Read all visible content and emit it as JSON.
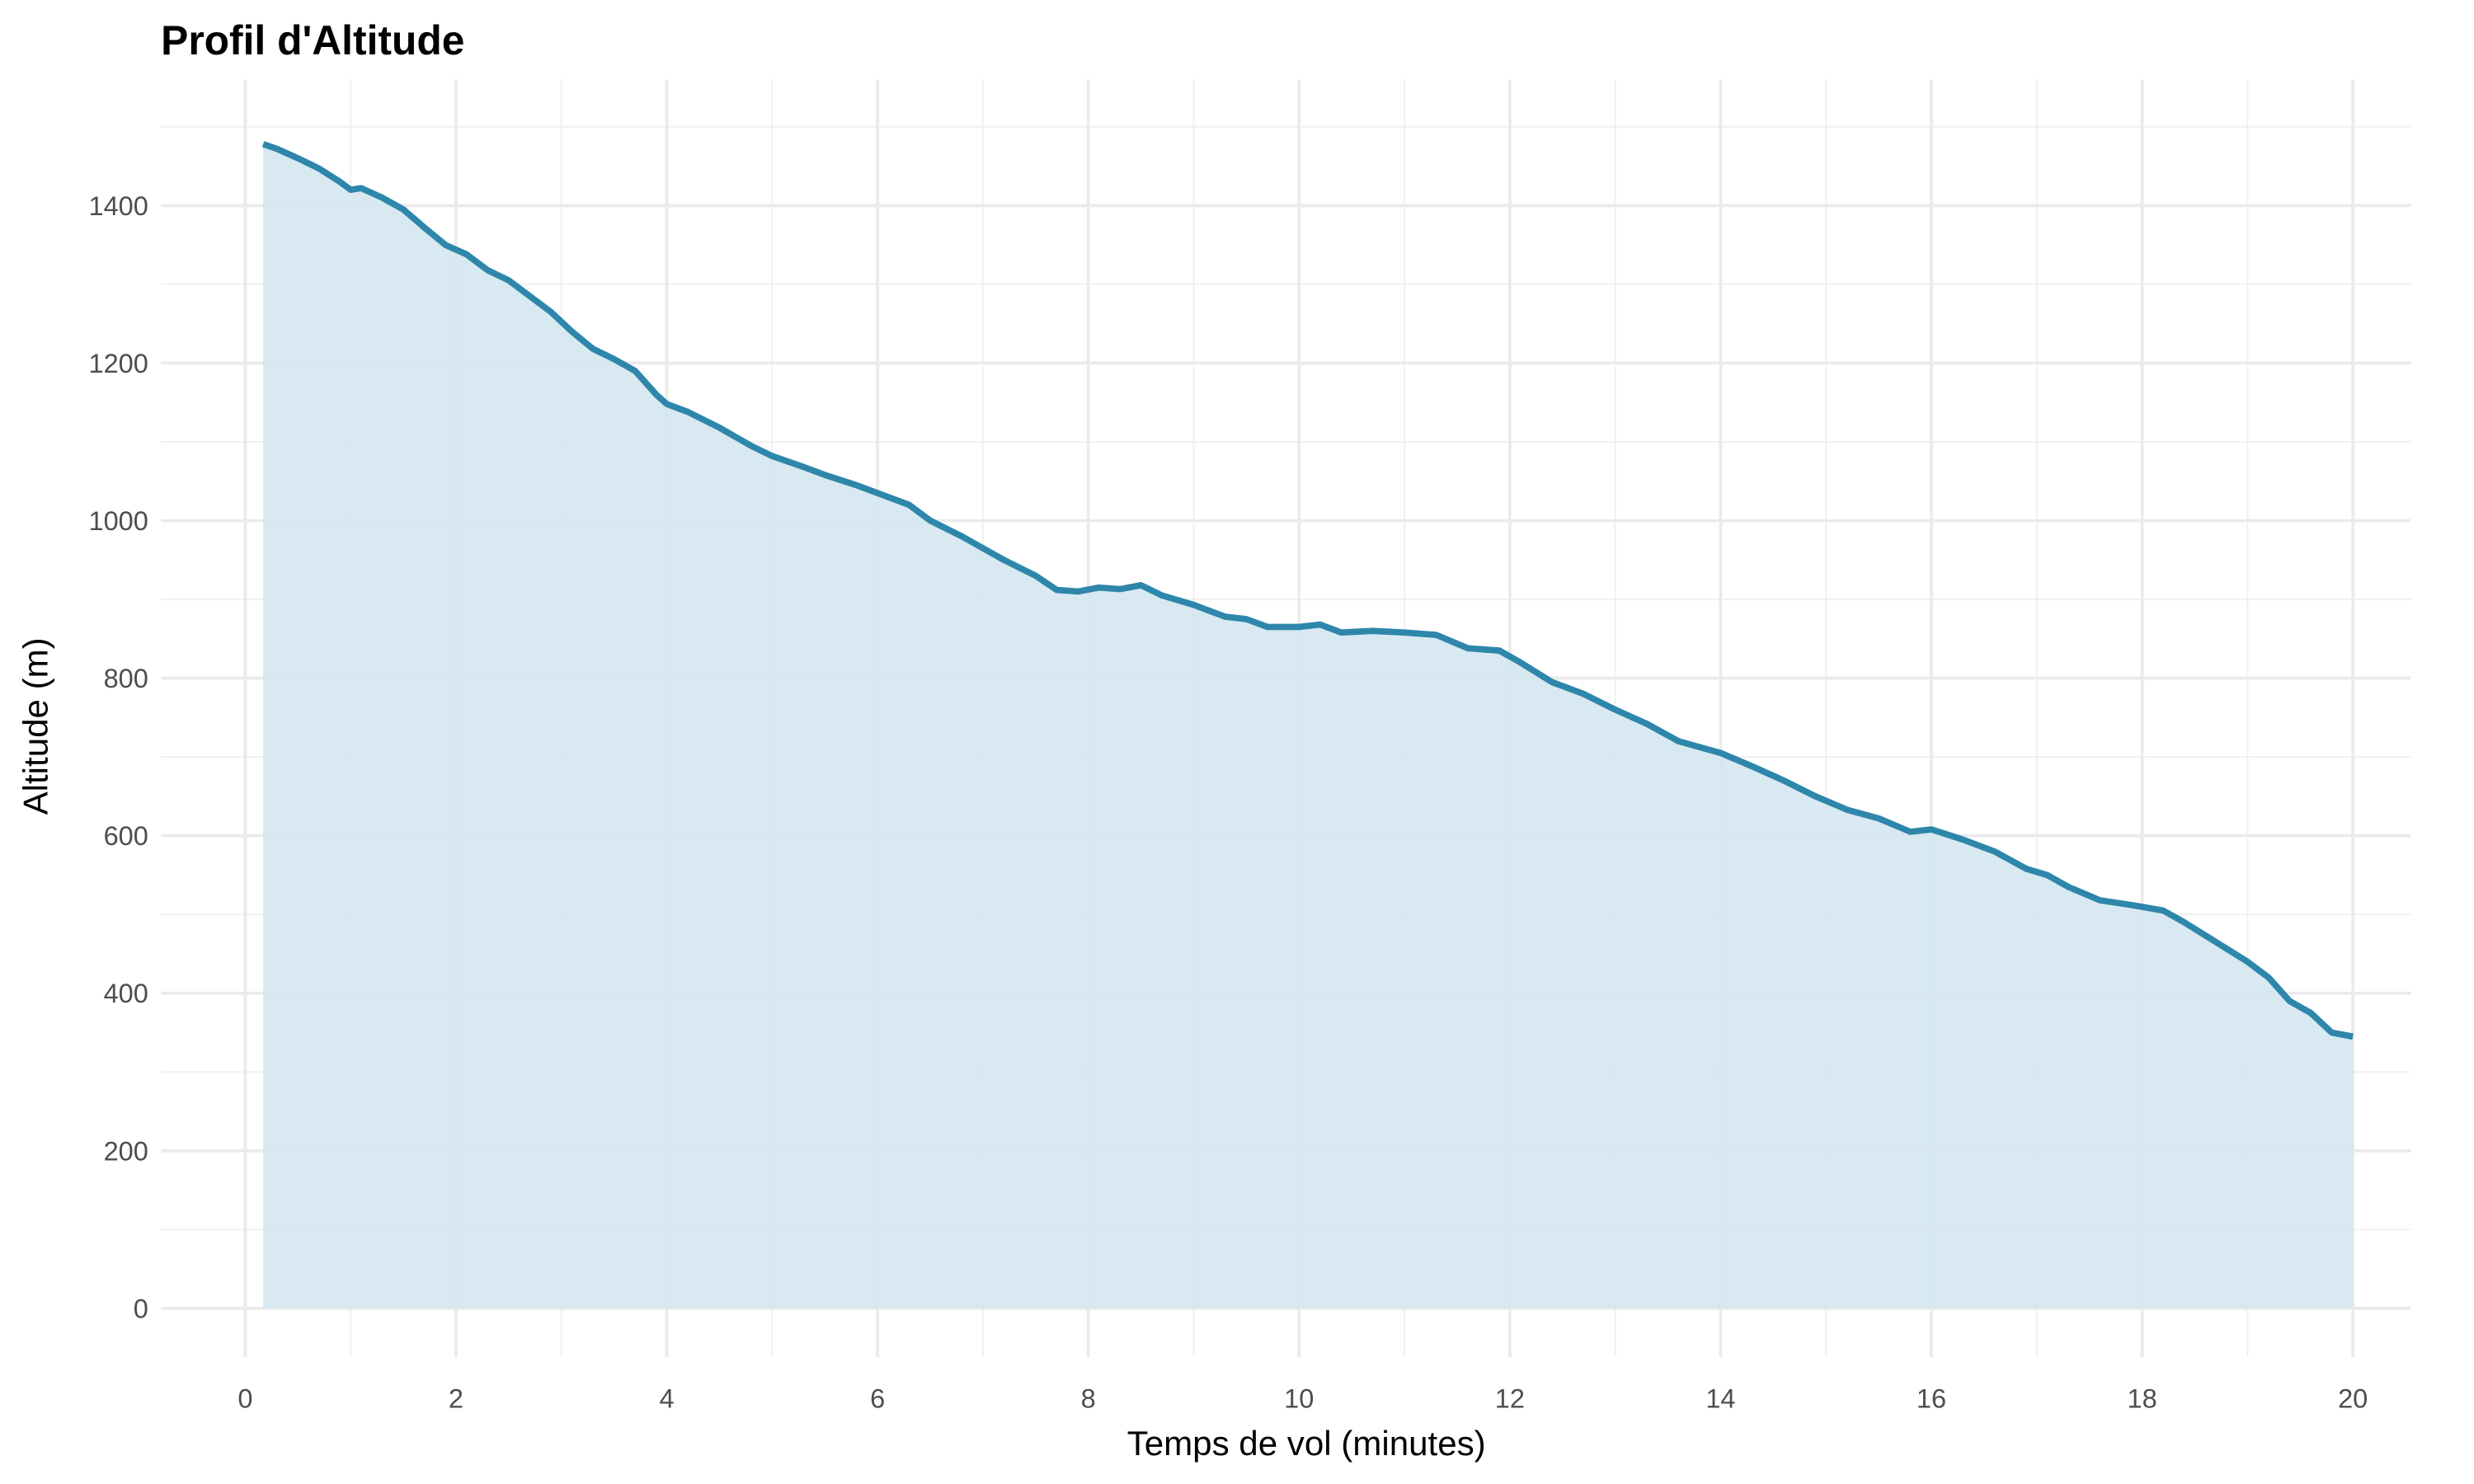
{
  "chart_data": {
    "type": "area",
    "title": "Profil d'Altitude",
    "x_label": "Temps de vol (minutes)",
    "y_label": "Altitude (m)",
    "color": "#2e86ab",
    "fill": "#d4e7ef",
    "grid": true,
    "xlim": [
      -0.8,
      20.55
    ],
    "ylim": [
      -62,
      1560
    ],
    "xticks": [
      0,
      2,
      4,
      6,
      8,
      10,
      12,
      14,
      16,
      18,
      20
    ],
    "yticks": [
      0,
      200,
      400,
      600,
      800,
      1000,
      1200,
      1400
    ],
    "x": [
      0.17,
      0.3,
      0.5,
      0.7,
      0.9,
      1.0,
      1.1,
      1.3,
      1.5,
      1.7,
      1.9,
      2.1,
      2.3,
      2.5,
      2.7,
      2.9,
      3.1,
      3.3,
      3.5,
      3.7,
      3.9,
      4.0,
      4.2,
      4.5,
      4.8,
      5.0,
      5.3,
      5.5,
      5.8,
      6.0,
      6.3,
      6.5,
      6.8,
      7.0,
      7.2,
      7.5,
      7.7,
      7.9,
      8.1,
      8.3,
      8.5,
      8.7,
      9.0,
      9.3,
      9.5,
      9.7,
      10.0,
      10.2,
      10.4,
      10.7,
      11.0,
      11.3,
      11.6,
      11.9,
      12.1,
      12.4,
      12.7,
      13.0,
      13.3,
      13.6,
      14.0,
      14.3,
      14.6,
      14.9,
      15.2,
      15.5,
      15.8,
      16.0,
      16.3,
      16.6,
      16.9,
      17.1,
      17.3,
      17.6,
      17.9,
      18.2,
      18.4,
      18.7,
      19.0,
      19.2,
      19.4,
      19.6,
      19.8,
      20.0
    ],
    "values": [
      1478,
      1472,
      1460,
      1447,
      1430,
      1420,
      1422,
      1410,
      1395,
      1372,
      1350,
      1338,
      1318,
      1305,
      1285,
      1265,
      1240,
      1218,
      1205,
      1190,
      1160,
      1148,
      1138,
      1118,
      1095,
      1082,
      1068,
      1058,
      1045,
      1035,
      1020,
      1000,
      980,
      965,
      950,
      930,
      912,
      910,
      915,
      913,
      918,
      905,
      893,
      878,
      875,
      865,
      865,
      868,
      858,
      860,
      858,
      855,
      838,
      835,
      820,
      795,
      780,
      760,
      742,
      720,
      705,
      688,
      670,
      650,
      633,
      622,
      605,
      608,
      595,
      580,
      558,
      550,
      535,
      518,
      512,
      505,
      490,
      465,
      440,
      420,
      390,
      375,
      350,
      345
    ]
  }
}
